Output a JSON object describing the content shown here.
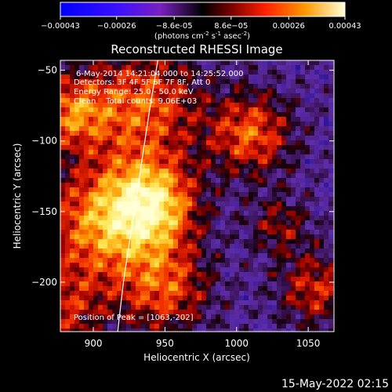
{
  "colorbar": {
    "ticks": [
      "-0.00043",
      "-0.00026",
      "-8.6e-05",
      "8.6e-05",
      "0.00026",
      "0.00043"
    ],
    "unit_main": "(photons cm",
    "unit_sup1": "-2",
    "unit_mid": " s",
    "unit_sup2": "-1",
    "unit_end": " asec",
    "unit_sup3": "-2",
    "unit_close": ")"
  },
  "chart_data": {
    "type": "heatmap",
    "title": "Reconstructed RHESSI Image",
    "xlabel": "Heliocentric X (arcsec)",
    "ylabel": "Heliocentric Y (arcsec)",
    "xlim": [
      877,
      1068
    ],
    "ylim": [
      -235,
      -43
    ],
    "x_ticks": [
      900,
      950,
      1000,
      1050
    ],
    "x_tick_labels": [
      "900",
      "950",
      "1000",
      "1050"
    ],
    "y_ticks": [
      -50,
      -100,
      -150,
      -200
    ],
    "y_tick_labels": [
      "−50",
      "−100",
      "−150",
      "−200"
    ],
    "value_range": [
      -0.00043,
      0.00043
    ],
    "peak_position": [
      1063,
      -202
    ],
    "annotations": [
      "6-May-2014 14:21:04.000 to 14:25:52.000",
      "Detectors: 3F 4F 5F 6F 7F 8F, Att 0",
      "Energy Range: 25.0 - 50.0 keV",
      "Clean    Total counts: 9.06E+03"
    ],
    "peak_label": "Position of Peak = [1063,-202]",
    "limb_curve": [
      [
        945,
        -43
      ],
      [
        939,
        -80
      ],
      [
        933,
        -120
      ],
      [
        927,
        -160
      ],
      [
        921,
        -200
      ],
      [
        917,
        -235
      ]
    ]
  },
  "footer": {
    "timestamp": "15-May-2022 02:15"
  }
}
